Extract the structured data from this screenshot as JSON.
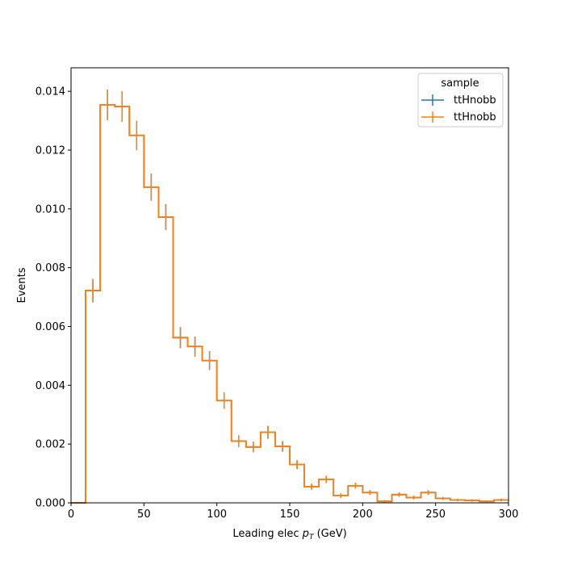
{
  "chart_data": {
    "type": "histogram-step",
    "xlabel_prefix": "Leading elec ",
    "xlabel_symbol": "p",
    "xlabel_subscript": "T",
    "xlabel_suffix": " (GeV)",
    "ylabel": "Events",
    "xlim": [
      0,
      300
    ],
    "ylim": [
      0,
      0.0148
    ],
    "xticks": [
      0,
      50,
      100,
      150,
      200,
      250,
      300
    ],
    "yticks": [
      0.0,
      0.002,
      0.004,
      0.006,
      0.008,
      0.01,
      0.012,
      0.014
    ],
    "ytick_labels": [
      "0.000",
      "0.002",
      "0.004",
      "0.006",
      "0.008",
      "0.010",
      "0.012",
      "0.014"
    ],
    "grid": false,
    "legend": {
      "title": "sample",
      "placement": "upper right",
      "entries": [
        {
          "name": "ttHnobb",
          "color": "#1f77b4"
        },
        {
          "name": "ttHnobb",
          "color": "#ff7f0e"
        }
      ]
    },
    "bin_edges": [
      0,
      10,
      20,
      30,
      40,
      50,
      60,
      70,
      80,
      90,
      100,
      110,
      120,
      130,
      140,
      150,
      160,
      170,
      180,
      190,
      200,
      210,
      220,
      230,
      240,
      250,
      260,
      270,
      280,
      290,
      300
    ],
    "series": [
      {
        "name": "ttHnobb",
        "color": "#1f77b4",
        "values": [
          0,
          0.00722,
          0.01354,
          0.01348,
          0.0125,
          0.01074,
          0.00972,
          0.00562,
          0.00532,
          0.00484,
          0.00348,
          0.0021,
          0.0019,
          0.0024,
          0.00192,
          0.0013,
          0.00055,
          0.0008,
          0.00025,
          0.00058,
          0.00035,
          5e-05,
          0.00028,
          0.00018,
          0.00035,
          0.00015,
          0.0001,
          8e-05,
          5e-05,
          0.0001
        ],
        "errors": [
          0,
          0.0004,
          0.00052,
          0.00052,
          0.0005,
          0.00046,
          0.00044,
          0.00036,
          0.00034,
          0.00032,
          0.00028,
          0.0002,
          0.00018,
          0.00022,
          0.00018,
          0.00015,
          0.0001,
          0.00012,
          8e-05,
          0.0001,
          8e-05,
          4e-05,
          7e-05,
          6e-05,
          8e-05,
          5e-05,
          4e-05,
          4e-05,
          3e-05,
          4e-05
        ]
      },
      {
        "name": "ttHnobb",
        "color": "#ff7f0e",
        "values": [
          0,
          0.00722,
          0.01354,
          0.01348,
          0.0125,
          0.01074,
          0.00972,
          0.00562,
          0.00532,
          0.00484,
          0.00348,
          0.0021,
          0.0019,
          0.0024,
          0.00192,
          0.0013,
          0.00055,
          0.0008,
          0.00025,
          0.00058,
          0.00035,
          5e-05,
          0.00028,
          0.00018,
          0.00035,
          0.00015,
          0.0001,
          8e-05,
          5e-05,
          0.0001
        ],
        "errors": [
          0,
          0.0004,
          0.00052,
          0.00052,
          0.0005,
          0.00046,
          0.00044,
          0.00036,
          0.00034,
          0.00032,
          0.00028,
          0.0002,
          0.00018,
          0.00022,
          0.00018,
          0.00015,
          0.0001,
          0.00012,
          8e-05,
          0.0001,
          8e-05,
          4e-05,
          7e-05,
          6e-05,
          8e-05,
          5e-05,
          4e-05,
          4e-05,
          3e-05,
          4e-05
        ]
      }
    ]
  }
}
